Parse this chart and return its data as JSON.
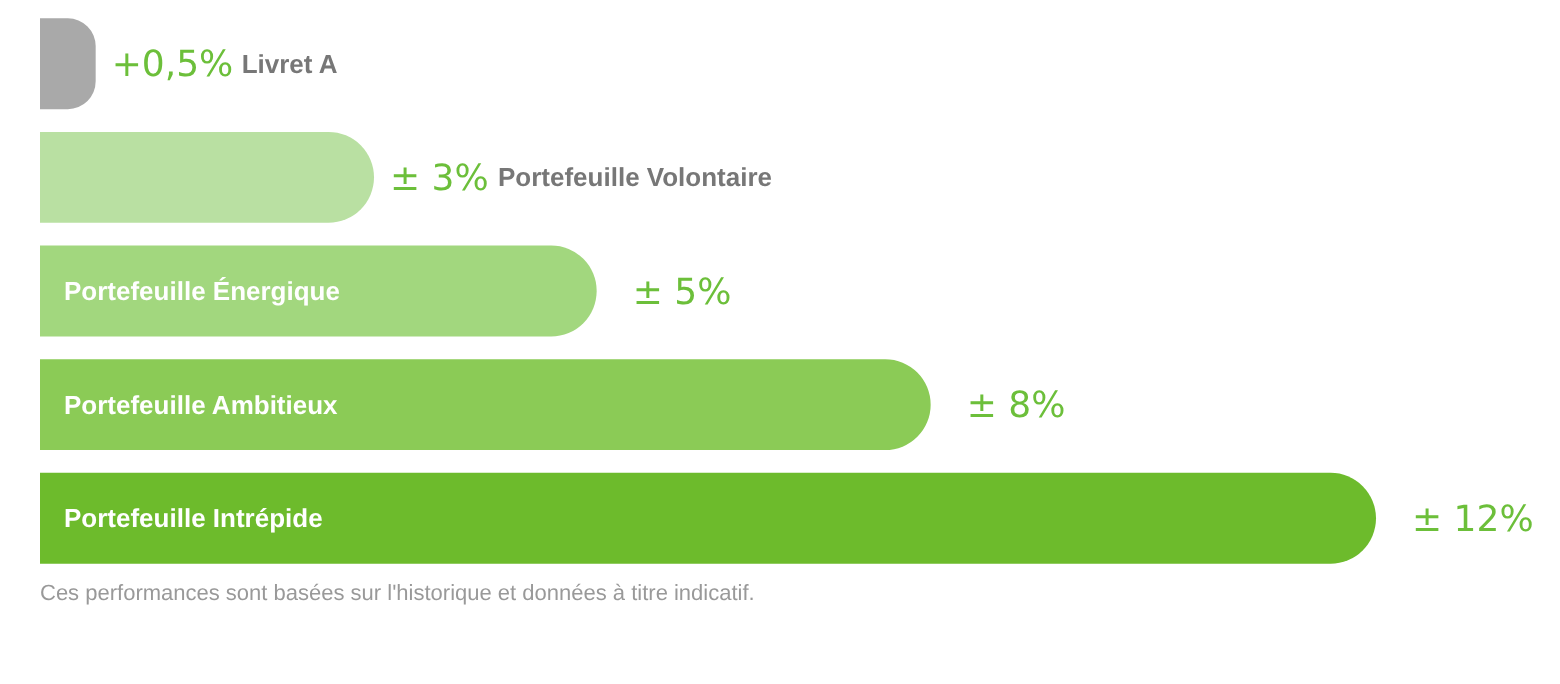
{
  "chart_data": {
    "type": "bar",
    "orientation": "horizontal",
    "categories": [
      "Livret A",
      "Portefeuille Volontaire",
      "Portefeuille Énergique",
      "Portefeuille Ambitieux",
      "Portefeuille Intrépide"
    ],
    "values": [
      0.5,
      3,
      5,
      8,
      12
    ],
    "colors": [
      "#a9a9a9",
      "#b9e0a2",
      "#a2d77e",
      "#8bcb56",
      "#6dbb2c"
    ],
    "value_labels": [
      "+0,5%",
      "± 3%",
      "± 5%",
      "± 8%",
      "± 12%"
    ],
    "annotations": [
      "Ces performances sont basées sur l'historique et données à titre indicatif."
    ]
  }
}
